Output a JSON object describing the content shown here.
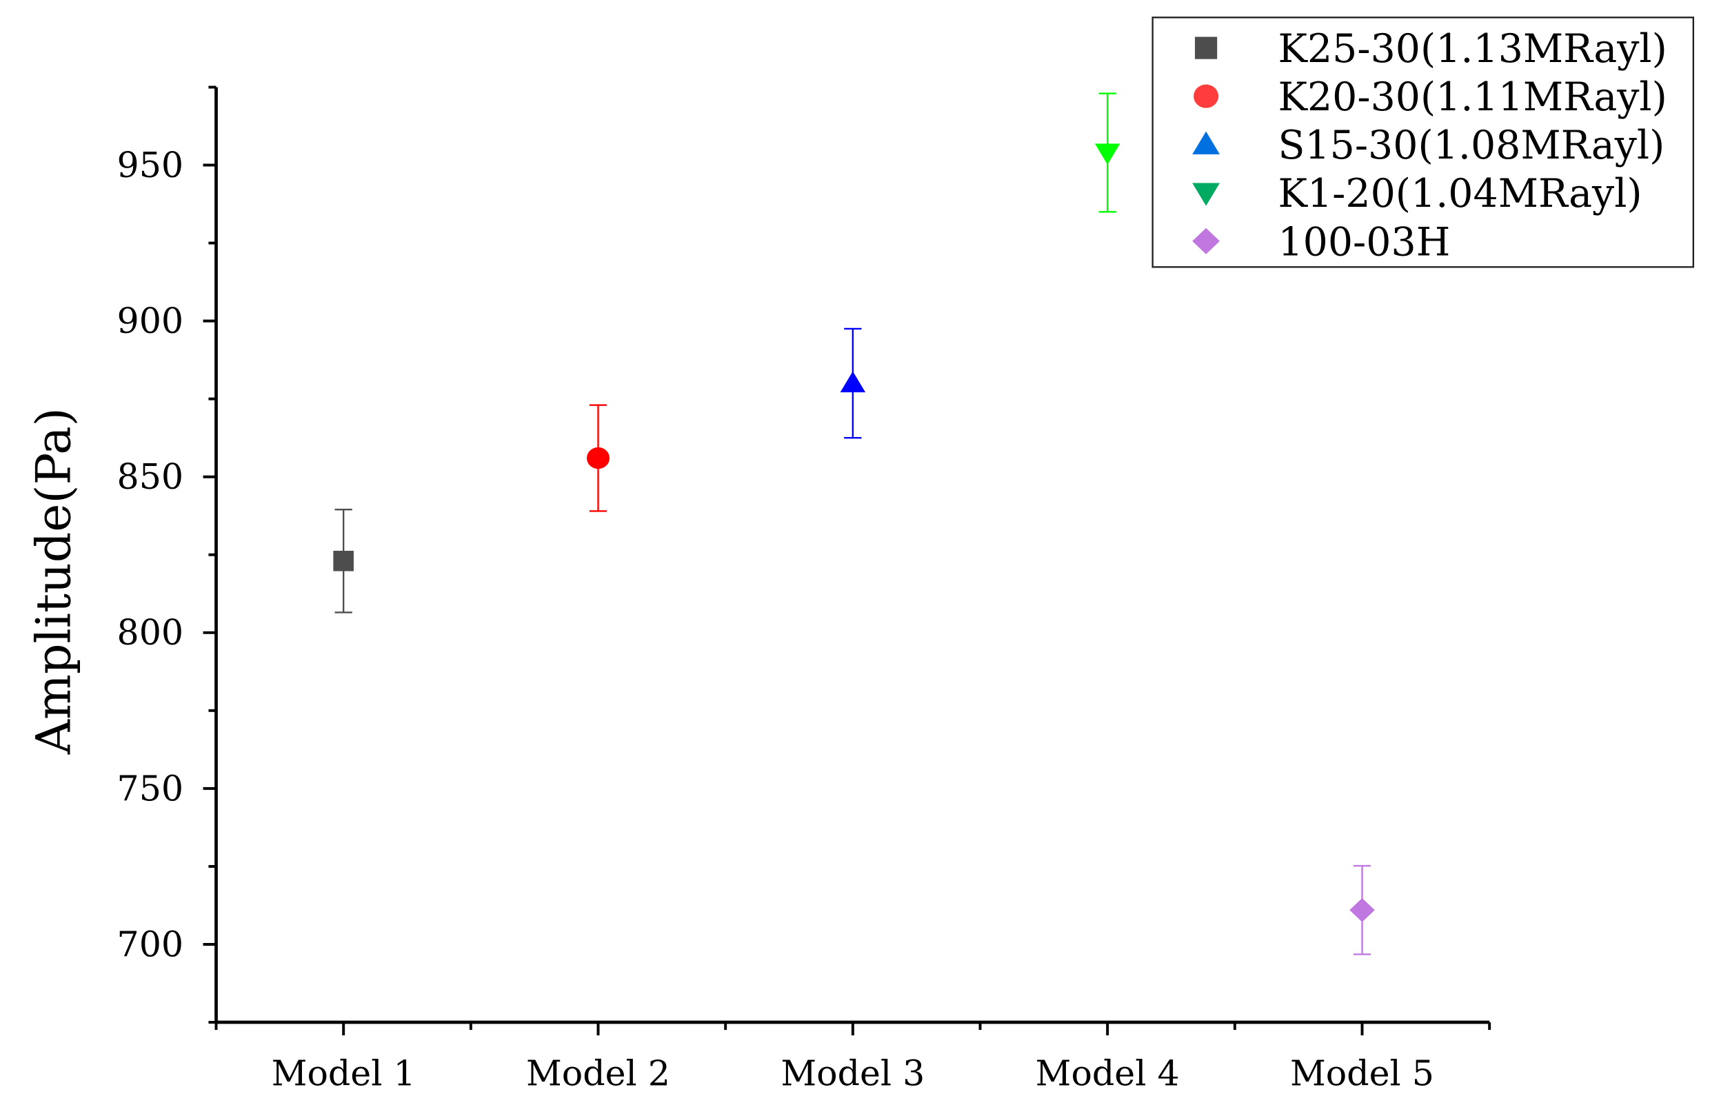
{
  "chart_data": {
    "type": "scatter",
    "title": "",
    "xlabel": "",
    "ylabel": "Amplitude(Pa)",
    "categories": [
      "Model 1",
      "Model 2",
      "Model 3",
      "Model 4",
      "Model 5"
    ],
    "ylim": [
      675,
      975
    ],
    "yticks": [
      700,
      750,
      800,
      850,
      900,
      950
    ],
    "grid": false,
    "legend_position": "top-right",
    "series": [
      {
        "name": "K25-30(1.13MRayl)",
        "category": "Model 1",
        "value": 823,
        "error": 16.5,
        "marker": "square",
        "color": "#4d4d4d",
        "legend_color": "#4d4d4d"
      },
      {
        "name": "K20-30(1.11MRayl)",
        "category": "Model 2",
        "value": 856,
        "error": 17,
        "marker": "circle",
        "color": "#ff0000",
        "legend_color": "#ff3d3d"
      },
      {
        "name": "S15-30(1.08MRayl)",
        "category": "Model 3",
        "value": 880,
        "error": 17.5,
        "marker": "triangle-up",
        "color": "#0000ff",
        "legend_color": "#0070e0"
      },
      {
        "name": "K1-20(1.04MRayl)",
        "category": "Model 4",
        "value": 954,
        "error": 19,
        "marker": "triangle-down",
        "color": "#00ff00",
        "legend_color": "#00aa60"
      },
      {
        "name": "100-03H",
        "category": "Model 5",
        "value": 711,
        "error": 14.2,
        "marker": "diamond",
        "color": "#c078e0",
        "legend_color": "#c078e0"
      }
    ]
  }
}
